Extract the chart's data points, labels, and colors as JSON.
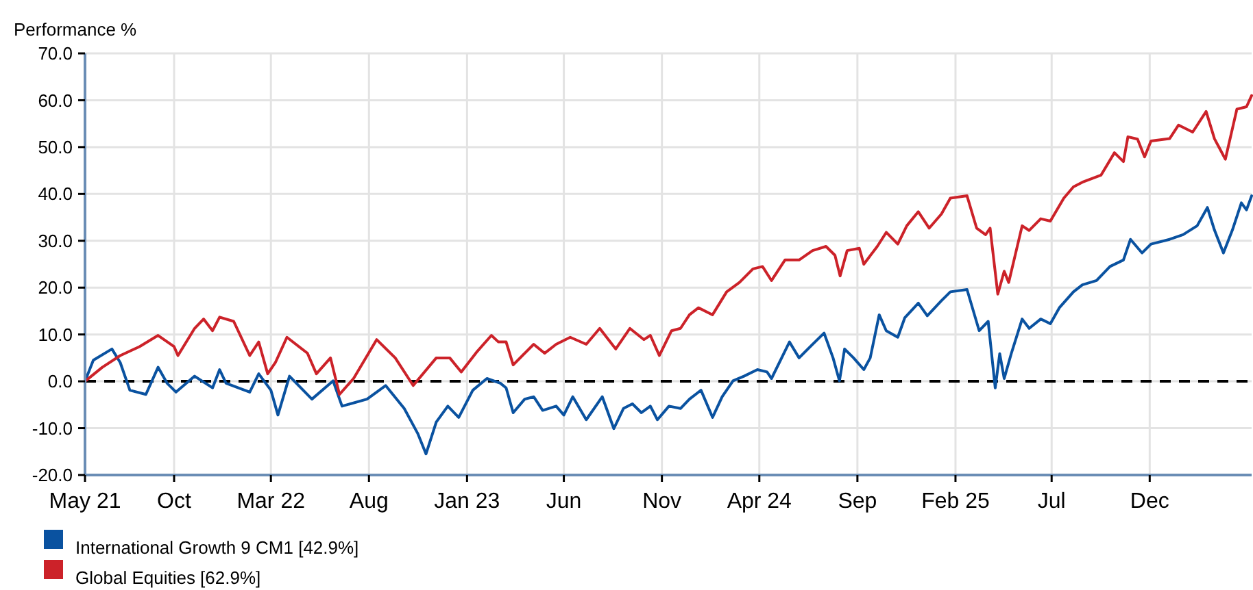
{
  "chart_data": {
    "type": "line",
    "ylabel": "Performance %",
    "xlim": [
      "2021-05-15",
      "2026-05-09"
    ],
    "xticks": [
      {
        "value": "2021-05-15",
        "label": "May 21"
      },
      {
        "value": "2021-10-01",
        "label": "Oct"
      },
      {
        "value": "2022-03-01",
        "label": "Mar 22"
      },
      {
        "value": "2022-08-01",
        "label": "Aug"
      },
      {
        "value": "2023-01-01",
        "label": "Jan 23"
      },
      {
        "value": "2023-06-01",
        "label": "Jun"
      },
      {
        "value": "2023-11-01",
        "label": "Nov"
      },
      {
        "value": "2024-04-01",
        "label": "Apr 24"
      },
      {
        "value": "2024-09-01",
        "label": "Sep"
      },
      {
        "value": "2025-02-01",
        "label": "Feb 25"
      },
      {
        "value": "2025-07-01",
        "label": "Jul"
      },
      {
        "value": "2025-12-01",
        "label": "Dec"
      }
    ],
    "ylim": [
      -20,
      70
    ],
    "yticks": [
      {
        "value": -20,
        "label": "-20.0"
      },
      {
        "value": -10,
        "label": "-10.0"
      },
      {
        "value": 0,
        "label": "0.0"
      },
      {
        "value": 10,
        "label": "10.0"
      },
      {
        "value": 20,
        "label": "20.0"
      },
      {
        "value": 30,
        "label": "30.0"
      },
      {
        "value": 40,
        "label": "40.0"
      },
      {
        "value": 50,
        "label": "50.0"
      },
      {
        "value": 60,
        "label": "60.0"
      },
      {
        "value": 70,
        "label": "70.0"
      }
    ],
    "grid": true,
    "legend": "bottom",
    "marker": "none",
    "line_style": "solid",
    "ref_lines": [
      {
        "axis": "y",
        "value": 0,
        "label": null,
        "color": "#000000",
        "line_style": "dashed"
      }
    ],
    "series": [
      {
        "name": "International Growth 9 CM1 [42.9%]",
        "color": "#0a52a0",
        "x": [
          "2021-05-15",
          "2021-05-28",
          "2021-06-26",
          "2021-07-09",
          "2021-07-24",
          "2021-08-18",
          "2021-09-06",
          "2021-09-20",
          "2021-10-04",
          "2021-11-02",
          "2021-11-30",
          "2021-12-11",
          "2021-12-21",
          "2022-01-27",
          "2022-02-10",
          "2022-03-01",
          "2022-03-12",
          "2022-03-30",
          "2022-05-04",
          "2022-06-06",
          "2022-06-20",
          "2022-07-29",
          "2022-08-27",
          "2022-09-25",
          "2022-10-16",
          "2022-10-29",
          "2022-11-14",
          "2022-12-02",
          "2022-12-19",
          "2023-01-10",
          "2023-02-01",
          "2023-02-22",
          "2023-03-03",
          "2023-03-14",
          "2023-04-01",
          "2023-04-15",
          "2023-04-29",
          "2023-05-20",
          "2023-06-01",
          "2023-06-15",
          "2023-07-06",
          "2023-07-31",
          "2023-08-18",
          "2023-09-02",
          "2023-09-16",
          "2023-09-30",
          "2023-10-14",
          "2023-10-25",
          "2023-11-12",
          "2023-11-30",
          "2023-12-14",
          "2024-01-01",
          "2024-01-19",
          "2024-02-03",
          "2024-02-20",
          "2024-03-08",
          "2024-03-29",
          "2024-04-13",
          "2024-04-20",
          "2024-05-18",
          "2024-06-02",
          "2024-06-23",
          "2024-07-11",
          "2024-07-25",
          "2024-08-04",
          "2024-08-12",
          "2024-08-26",
          "2024-09-11",
          "2024-09-21",
          "2024-10-05",
          "2024-10-16",
          "2024-11-03",
          "2024-11-14",
          "2024-12-05",
          "2024-12-19",
          "2025-01-10",
          "2025-01-24",
          "2025-02-19",
          "2025-03-10",
          "2025-03-24",
          "2025-04-04",
          "2025-04-11",
          "2025-04-18",
          "2025-04-29",
          "2025-05-16",
          "2025-05-27",
          "2025-06-14",
          "2025-06-29",
          "2025-07-13",
          "2025-08-04",
          "2025-08-18",
          "2025-09-09",
          "2025-09-30",
          "2025-10-21",
          "2025-11-01",
          "2025-11-19",
          "2025-12-03",
          "2026-01-01",
          "2026-01-22",
          "2026-02-13",
          "2026-03-01",
          "2026-03-12",
          "2026-03-26",
          "2026-04-09",
          "2026-04-23",
          "2026-05-01",
          "2026-05-09"
        ],
        "values": [
          0,
          4.5,
          6.9,
          4,
          -1.9,
          -2.8,
          3,
          -0.4,
          -2.3,
          1.1,
          -1.4,
          2.5,
          -0.4,
          -2.3,
          1.6,
          -1.9,
          -7.2,
          1.1,
          -3.8,
          0.1,
          -5.3,
          -3.8,
          -0.9,
          -5.8,
          -11.1,
          -15.5,
          -8.7,
          -5.3,
          -7.7,
          -1.9,
          0.6,
          -0.4,
          -1.4,
          -6.7,
          -3.8,
          -3.3,
          -6.2,
          -5.3,
          -7.2,
          -3.3,
          -8.2,
          -3.3,
          -10.1,
          -5.8,
          -4.8,
          -6.7,
          -5.3,
          -8.2,
          -5.3,
          -5.8,
          -3.8,
          -1.9,
          -7.7,
          -3.3,
          0.1,
          1.1,
          2.5,
          2,
          0.6,
          8.4,
          5,
          7.9,
          10.3,
          5,
          0.1,
          6.9,
          5,
          2.5,
          5,
          14.2,
          10.8,
          9.4,
          13.6,
          16.7,
          14,
          17.2,
          19.1,
          19.6,
          10.8,
          12.8,
          -1.4,
          5.9,
          0.6,
          5.9,
          13.3,
          11.3,
          13.3,
          12.3,
          15.7,
          19.1,
          20.6,
          21.5,
          24.5,
          25.9,
          30.3,
          27.4,
          29.3,
          30.3,
          31.3,
          33.2,
          37.1,
          32.3,
          27.4,
          32.3,
          38.1,
          36.6,
          39.6
        ]
      },
      {
        "name": "Global Equities [62.9%]",
        "color": "#cc2229",
        "x": [
          "2021-05-15",
          "2021-06-11",
          "2021-07-09",
          "2021-08-08",
          "2021-09-06",
          "2021-10-01",
          "2021-10-07",
          "2021-11-02",
          "2021-11-16",
          "2021-11-30",
          "2021-12-11",
          "2022-01-02",
          "2022-01-27",
          "2022-02-10",
          "2022-02-24",
          "2022-03-08",
          "2022-03-26",
          "2022-04-27",
          "2022-05-11",
          "2022-06-02",
          "2022-06-16",
          "2022-07-08",
          "2022-08-13",
          "2022-09-11",
          "2022-10-09",
          "2022-11-14",
          "2022-12-05",
          "2022-12-23",
          "2023-01-17",
          "2023-02-08",
          "2023-02-19",
          "2023-03-03",
          "2023-03-14",
          "2023-04-01",
          "2023-04-15",
          "2023-05-02",
          "2023-05-20",
          "2023-06-11",
          "2023-07-06",
          "2023-07-27",
          "2023-08-21",
          "2023-09-12",
          "2023-10-04",
          "2023-10-14",
          "2023-10-28",
          "2023-11-16",
          "2023-11-30",
          "2023-12-14",
          "2023-12-28",
          "2024-01-19",
          "2024-02-10",
          "2024-03-01",
          "2024-03-22",
          "2024-04-06",
          "2024-04-20",
          "2024-05-11",
          "2024-06-02",
          "2024-06-23",
          "2024-07-14",
          "2024-07-28",
          "2024-08-05",
          "2024-08-16",
          "2024-09-04",
          "2024-09-11",
          "2024-10-02",
          "2024-10-16",
          "2024-11-03",
          "2024-11-17",
          "2024-12-05",
          "2024-12-22",
          "2025-01-10",
          "2025-01-24",
          "2025-02-19",
          "2025-03-06",
          "2025-03-20",
          "2025-03-27",
          "2025-04-08",
          "2025-04-18",
          "2025-04-25",
          "2025-05-16",
          "2025-05-27",
          "2025-06-14",
          "2025-06-29",
          "2025-07-20",
          "2025-08-04",
          "2025-08-18",
          "2025-09-16",
          "2025-10-07",
          "2025-10-21",
          "2025-10-28",
          "2025-11-12",
          "2025-11-23",
          "2025-12-03",
          "2026-01-01",
          "2026-01-15",
          "2026-02-06",
          "2026-02-27",
          "2026-03-12",
          "2026-03-29",
          "2026-04-16",
          "2026-05-01",
          "2026-05-09"
        ],
        "values": [
          0,
          3,
          5.5,
          7.4,
          9.8,
          7.4,
          5.5,
          11.3,
          13.3,
          10.8,
          13.7,
          12.8,
          5.5,
          8.4,
          1.6,
          4,
          9.4,
          6,
          1.6,
          5,
          -2.8,
          0.6,
          8.9,
          5,
          -0.9,
          5,
          5,
          2,
          6.4,
          9.8,
          8.4,
          8.4,
          3.5,
          6,
          7.9,
          6,
          7.9,
          9.4,
          7.9,
          11.3,
          6.9,
          11.3,
          8.9,
          9.8,
          5.5,
          10.8,
          11.3,
          14.2,
          15.7,
          14.2,
          19.1,
          21.1,
          24,
          24.5,
          21.5,
          25.9,
          25.9,
          27.9,
          28.8,
          26.9,
          22.5,
          27.9,
          28.4,
          25,
          28.8,
          31.8,
          29.3,
          33.2,
          36.2,
          32.7,
          35.7,
          39.1,
          39.6,
          32.7,
          31.3,
          32.7,
          18.6,
          23.5,
          21.1,
          33.2,
          32.2,
          34.7,
          34.2,
          39.1,
          41.5,
          42.5,
          44,
          48.8,
          46.9,
          52.2,
          51.7,
          47.9,
          51.3,
          51.8,
          54.7,
          53.2,
          57.6,
          51.8,
          47.4,
          58.1,
          58.6,
          61
        ]
      }
    ]
  }
}
